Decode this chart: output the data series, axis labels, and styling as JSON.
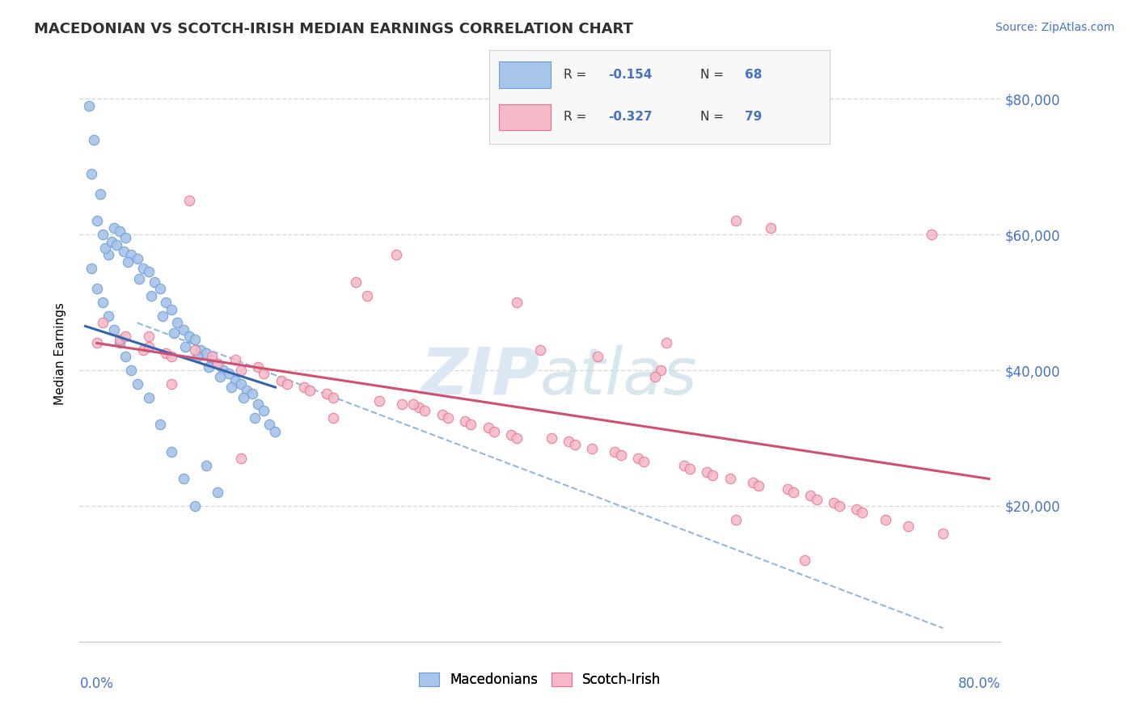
{
  "title": "MACEDONIAN VS SCOTCH-IRISH MEDIAN EARNINGS CORRELATION CHART",
  "source": "Source: ZipAtlas.com",
  "ylabel": "Median Earnings",
  "legend_label_blue": "Macedonians",
  "legend_label_pink": "Scotch-Irish",
  "blue_scatter_color": "#a8c4e8",
  "blue_edge_color": "#6a9fd8",
  "pink_scatter_color": "#f4b8c8",
  "pink_edge_color": "#e87090",
  "trend_blue_color": "#3464b0",
  "trend_pink_color": "#d05070",
  "dashed_color": "#90b8e0",
  "ytick_color": "#4472c4",
  "xtick_color": "#4472c4",
  "grid_color": "#d8d8d8",
  "title_color": "#303030",
  "source_color": "#4472c4",
  "watermark_color": "#dce8f4",
  "blue_x": [
    0.8,
    1.0,
    1.5,
    2.0,
    1.2,
    1.8,
    2.5,
    3.0,
    2.2,
    2.8,
    3.5,
    4.0,
    3.2,
    3.8,
    4.5,
    5.0,
    4.2,
    5.5,
    6.0,
    5.2,
    6.5,
    7.0,
    6.2,
    7.5,
    8.0,
    7.2,
    8.5,
    9.0,
    8.2,
    9.5,
    10.0,
    9.2,
    10.5,
    11.0,
    10.2,
    11.5,
    12.0,
    11.2,
    12.5,
    13.0,
    12.2,
    13.5,
    14.0,
    13.2,
    14.5,
    15.0,
    14.2,
    15.5,
    16.0,
    15.2,
    16.5,
    17.0,
    1.0,
    2.0,
    3.0,
    4.0,
    5.0,
    1.5,
    2.5,
    3.5,
    4.5,
    6.0,
    7.0,
    8.0,
    9.0,
    10.0,
    11.0,
    12.0
  ],
  "blue_y": [
    79000,
    69000,
    62000,
    60000,
    74000,
    66000,
    57000,
    61000,
    58000,
    59000,
    60500,
    59500,
    58500,
    57500,
    57000,
    56500,
    56000,
    55000,
    54500,
    53500,
    53000,
    52000,
    51000,
    50000,
    49000,
    48000,
    47000,
    46000,
    45500,
    45000,
    44500,
    43500,
    43000,
    42500,
    42000,
    41500,
    41000,
    40500,
    40000,
    39500,
    39000,
    38500,
    38000,
    37500,
    37000,
    36500,
    36000,
    35000,
    34000,
    33000,
    32000,
    31000,
    55000,
    50000,
    46000,
    42000,
    38000,
    52000,
    48000,
    44000,
    40000,
    36000,
    32000,
    28000,
    24000,
    20000,
    26000,
    22000
  ],
  "pink_x": [
    1.5,
    2.0,
    3.5,
    4.0,
    5.5,
    6.0,
    7.5,
    8.0,
    9.5,
    10.0,
    11.5,
    12.0,
    13.5,
    14.0,
    15.5,
    16.0,
    17.5,
    18.0,
    19.5,
    20.0,
    21.5,
    22.0,
    24.0,
    25.0,
    26.0,
    27.5,
    28.0,
    29.5,
    30.0,
    31.5,
    32.0,
    33.5,
    34.0,
    35.5,
    36.0,
    37.5,
    38.0,
    40.0,
    41.0,
    42.5,
    43.0,
    44.5,
    45.0,
    46.5,
    47.0,
    48.5,
    49.0,
    50.5,
    51.0,
    52.5,
    53.0,
    54.5,
    55.0,
    56.5,
    57.0,
    58.5,
    59.0,
    60.0,
    61.5,
    62.0,
    63.5,
    64.0,
    65.5,
    66.0,
    67.5,
    68.0,
    70.0,
    72.0,
    74.0,
    75.0,
    50.0,
    38.0,
    29.0,
    22.0,
    6.0,
    8.0,
    14.0,
    57.0,
    63.0
  ],
  "pink_y": [
    44000,
    47000,
    44500,
    45000,
    43000,
    43500,
    42500,
    42000,
    65000,
    43000,
    42000,
    41000,
    41500,
    40000,
    40500,
    39500,
    38500,
    38000,
    37500,
    37000,
    36500,
    36000,
    53000,
    51000,
    35500,
    57000,
    35000,
    34500,
    34000,
    33500,
    33000,
    32500,
    32000,
    31500,
    31000,
    30500,
    50000,
    43000,
    30000,
    29500,
    29000,
    28500,
    42000,
    28000,
    27500,
    27000,
    26500,
    40000,
    44000,
    26000,
    25500,
    25000,
    24500,
    24000,
    62000,
    23500,
    23000,
    61000,
    22500,
    22000,
    21500,
    21000,
    20500,
    20000,
    19500,
    19000,
    18000,
    17000,
    60000,
    16000,
    39000,
    30000,
    35000,
    33000,
    45000,
    38000,
    27000,
    18000,
    12000
  ]
}
